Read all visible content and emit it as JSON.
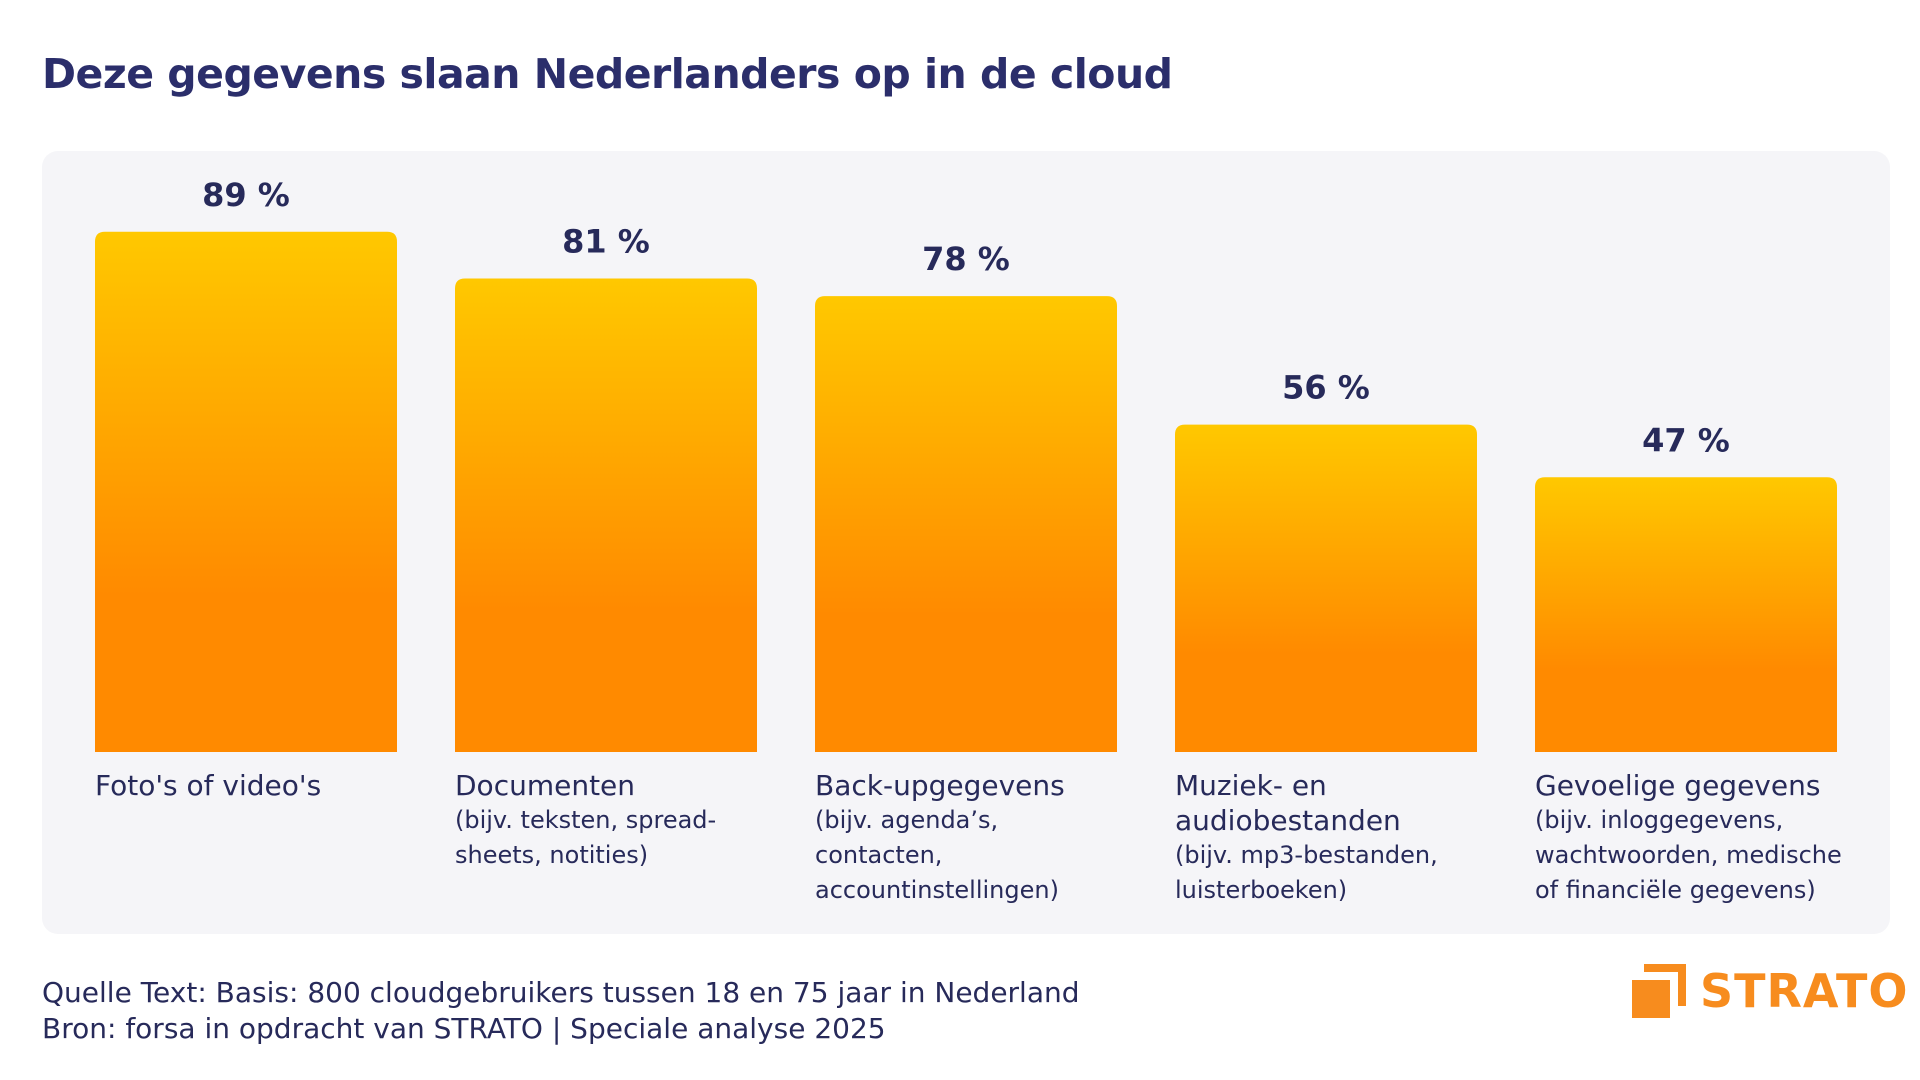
{
  "title": "Deze gegevens slaan Nederlanders op in de cloud",
  "chart_data": {
    "type": "bar",
    "categories": [
      "Foto's of video's",
      "Documenten",
      "Back-upgegevens",
      "Muziek- en audiobestanden",
      "Gevoelige gegevens"
    ],
    "category_notes": [
      "",
      "(bijv. teksten, spread-sheets, notities)",
      "(bijv. agenda’s, contacten, accountinstellingen)",
      "(bijv. mp3-bestanden, luisterboeken)",
      "(bijv. inloggegevens, wachtwoorden, medische of financiële gegevens)"
    ],
    "values": [
      89,
      81,
      78,
      56,
      47
    ],
    "value_labels": [
      "89 %",
      "81 %",
      "78 %",
      "56 %",
      "47 %"
    ],
    "unit": "%",
    "ylim": [
      0,
      100
    ],
    "grid": false,
    "legend": "none",
    "colors": {
      "bar_top": "#ffc800",
      "bar_bottom": "#ff8a00",
      "label": "#272a5a"
    }
  },
  "source": {
    "line1": "Quelle Text: Basis: 800 cloudgebruikers tussen 18 en 75 jaar in Nederland",
    "line2": "Bron: forsa in opdracht van STRATO | Speciale analyse 2025"
  },
  "logo": {
    "text": "STRATO",
    "icon": "strato-logo-icon",
    "color": "#f78c1e"
  }
}
